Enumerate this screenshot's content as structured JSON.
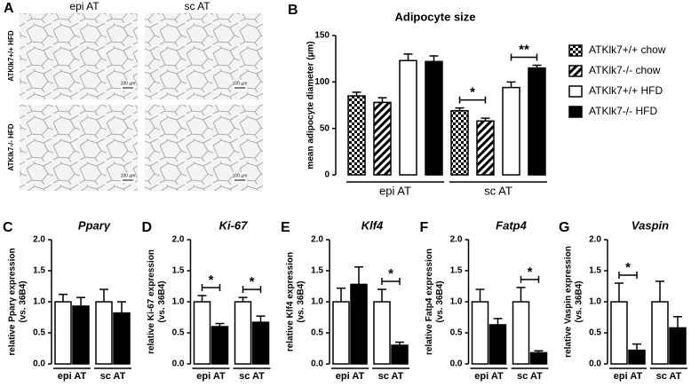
{
  "panel_a": {
    "label": "A",
    "columns": [
      "epi AT",
      "sc AT"
    ],
    "rows": [
      "ATKlk7+/+ HFD",
      "ATKlk7-/- HFD"
    ],
    "scale_bar": "100 µm"
  },
  "chart_data": [
    {
      "type": "bar",
      "label": "B",
      "title": "Adipocyte size",
      "ylabel": [
        "mean adipocyte diameter (µm)"
      ],
      "categories": [
        "epi AT",
        "sc AT"
      ],
      "ylim": [
        0,
        150
      ],
      "yticks": [
        0,
        50,
        100,
        150
      ],
      "series": [
        {
          "name": "ATKlk7+/+ chow",
          "color": "#000000",
          "pattern": "checker",
          "values": [
            85,
            69
          ],
          "errors": [
            4,
            3
          ]
        },
        {
          "name": "ATKlk7-/- chow",
          "color": "#000000",
          "pattern": "hatch",
          "values": [
            78,
            58
          ],
          "errors": [
            5,
            3
          ]
        },
        {
          "name": "ATKlk7+/+ HFD",
          "color": "#ffffff",
          "values": [
            123,
            94
          ],
          "errors": [
            7,
            6
          ]
        },
        {
          "name": "ATKlk7-/- HFD",
          "color": "#000000",
          "values": [
            122,
            115
          ],
          "errors": [
            6,
            3
          ]
        }
      ],
      "significance": [
        [
          null,
          null
        ],
        [
          "*",
          "**"
        ]
      ]
    },
    {
      "type": "bar",
      "label": "C",
      "title": "Pparγ",
      "ylabel": [
        "relative Pparγ expression",
        "(vs. 36B4)"
      ],
      "categories": [
        "epi AT",
        "sc AT"
      ],
      "ylim": [
        0,
        2
      ],
      "yticks": [
        {
          "value": 0,
          "label": "0.0"
        },
        {
          "value": 0.5,
          "label": "0.5"
        },
        {
          "value": 1,
          "label": "1.0"
        },
        {
          "value": 1.5,
          "label": "1.5"
        },
        {
          "value": 2,
          "label": "2.0"
        }
      ],
      "series": [
        {
          "color": "#ffffff",
          "values": [
            1.0,
            1.0
          ],
          "errors": [
            0.12,
            0.2
          ]
        },
        {
          "color": "#000000",
          "values": [
            0.93,
            0.82
          ],
          "errors": [
            0.14,
            0.18
          ]
        }
      ],
      "significance": [
        null,
        null
      ]
    },
    {
      "type": "bar",
      "label": "D",
      "title": "Ki-67",
      "ylabel": [
        "relative Ki-67 expression",
        "(vs. 36B4)"
      ],
      "categories": [
        "epi AT",
        "sc AT"
      ],
      "ylim": [
        0,
        2
      ],
      "yticks": [
        {
          "value": 0,
          "label": "0.0"
        },
        {
          "value": 0.5,
          "label": "0.5"
        },
        {
          "value": 1,
          "label": "1.0"
        },
        {
          "value": 1.5,
          "label": "1.5"
        },
        {
          "value": 2,
          "label": "2.0"
        }
      ],
      "series": [
        {
          "color": "#ffffff",
          "values": [
            1.0,
            1.0
          ],
          "errors": [
            0.1,
            0.07
          ]
        },
        {
          "color": "#000000",
          "values": [
            0.6,
            0.67
          ],
          "errors": [
            0.05,
            0.1
          ]
        }
      ],
      "significance": [
        "*",
        "*"
      ]
    },
    {
      "type": "bar",
      "label": "E",
      "title": "Klf4",
      "ylabel": [
        "relative Klf4 expression",
        "(vs. 36B4)"
      ],
      "categories": [
        "epi AT",
        "sc AT"
      ],
      "ylim": [
        0,
        2
      ],
      "yticks": [
        {
          "value": 0,
          "label": "0.0"
        },
        {
          "value": 0.5,
          "label": "0.5"
        },
        {
          "value": 1,
          "label": "1.0"
        },
        {
          "value": 1.5,
          "label": "1.5"
        },
        {
          "value": 2,
          "label": "2.0"
        }
      ],
      "series": [
        {
          "color": "#ffffff",
          "values": [
            1.0,
            1.0
          ],
          "errors": [
            0.22,
            0.2
          ]
        },
        {
          "color": "#000000",
          "values": [
            1.28,
            0.3
          ],
          "errors": [
            0.28,
            0.05
          ]
        }
      ],
      "significance": [
        null,
        "*"
      ]
    },
    {
      "type": "bar",
      "label": "F",
      "title": "Fatp4",
      "ylabel": [
        "relative Fatp4 expression",
        "(vs. 36B4)"
      ],
      "categories": [
        "epi AT",
        "sc AT"
      ],
      "ylim": [
        0,
        2
      ],
      "yticks": [
        {
          "value": 0,
          "label": "0.0"
        },
        {
          "value": 0.5,
          "label": "0.5"
        },
        {
          "value": 1,
          "label": "1.0"
        },
        {
          "value": 1.5,
          "label": "1.5"
        },
        {
          "value": 2,
          "label": "2.0"
        }
      ],
      "series": [
        {
          "color": "#ffffff",
          "values": [
            1.0,
            1.0
          ],
          "errors": [
            0.2,
            0.23
          ]
        },
        {
          "color": "#000000",
          "values": [
            0.63,
            0.18
          ],
          "errors": [
            0.1,
            0.03
          ]
        }
      ],
      "significance": [
        null,
        "*"
      ]
    },
    {
      "type": "bar",
      "label": "G",
      "title": "Vaspin",
      "ylabel": [
        "relative Vaspin expression",
        "(vs. 36B4)"
      ],
      "categories": [
        "epi AT",
        "sc AT"
      ],
      "ylim": [
        0,
        2
      ],
      "yticks": [
        {
          "value": 0,
          "label": "0.0"
        },
        {
          "value": 0.5,
          "label": "0.5"
        },
        {
          "value": 1,
          "label": "1.0"
        },
        {
          "value": 1.5,
          "label": "1.5"
        },
        {
          "value": 2,
          "label": "2.0"
        }
      ],
      "series": [
        {
          "color": "#ffffff",
          "values": [
            1.0,
            1.0
          ],
          "errors": [
            0.3,
            0.33
          ]
        },
        {
          "color": "#000000",
          "values": [
            0.22,
            0.58
          ],
          "errors": [
            0.1,
            0.18
          ]
        }
      ],
      "significance": [
        "*",
        null
      ]
    }
  ]
}
